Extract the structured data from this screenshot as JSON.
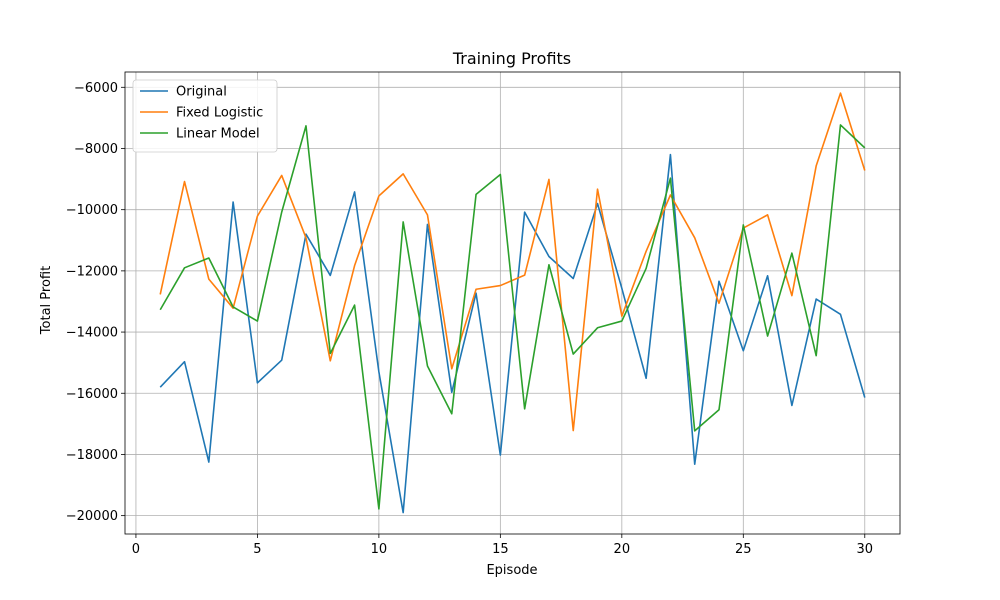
{
  "chart_data": {
    "type": "line",
    "title": "Training Profits",
    "xlabel": "Episode",
    "ylabel": "Total Profit",
    "xlim": [
      -0.45,
      31.45
    ],
    "ylim": [
      -20600,
      -5500
    ],
    "xticks": [
      0,
      5,
      10,
      15,
      20,
      25,
      30
    ],
    "yticks": [
      -20000,
      -18000,
      -16000,
      -14000,
      -12000,
      -10000,
      -8000,
      -6000
    ],
    "ytick_labels": [
      "−20000",
      "−18000",
      "−16000",
      "−14000",
      "−12000",
      "−10000",
      "−8000",
      "−6000"
    ],
    "grid": true,
    "legend_position": "top-left",
    "x": [
      1,
      2,
      3,
      4,
      5,
      6,
      7,
      8,
      9,
      10,
      11,
      12,
      13,
      14,
      15,
      16,
      17,
      18,
      19,
      20,
      21,
      22,
      23,
      24,
      25,
      26,
      27,
      28,
      29,
      30
    ],
    "series": [
      {
        "name": "Original",
        "color": "#1f77b4",
        "values": [
          -15800,
          -14970,
          -18250,
          -9750,
          -15660,
          -14920,
          -10800,
          -12150,
          -9420,
          -15300,
          -19900,
          -10480,
          -15970,
          -12730,
          -18020,
          -10080,
          -11530,
          -12250,
          -9800,
          -12570,
          -15510,
          -8200,
          -18320,
          -12340,
          -14610,
          -12160,
          -16400,
          -12920,
          -13420,
          -16140
        ]
      },
      {
        "name": "Fixed Logistic",
        "color": "#ff7f0e",
        "values": [
          -12770,
          -9080,
          -12270,
          -13220,
          -10210,
          -8880,
          -10920,
          -14940,
          -11830,
          -9550,
          -8830,
          -10170,
          -15200,
          -12600,
          -12480,
          -12140,
          -9010,
          -17220,
          -9330,
          -13480,
          -11360,
          -9520,
          -10920,
          -13060,
          -10600,
          -10170,
          -12810,
          -8570,
          -6190,
          -8720
        ]
      },
      {
        "name": "Linear Model",
        "color": "#2ca02c",
        "values": [
          -13270,
          -11900,
          -11580,
          -13180,
          -13640,
          -10080,
          -7260,
          -14700,
          -13120,
          -19780,
          -10400,
          -15110,
          -16670,
          -9500,
          -8850,
          -16510,
          -11800,
          -14720,
          -13860,
          -13640,
          -11920,
          -8970,
          -17230,
          -16540,
          -10500,
          -14130,
          -11420,
          -14770,
          -7230,
          -7980
        ]
      }
    ]
  }
}
